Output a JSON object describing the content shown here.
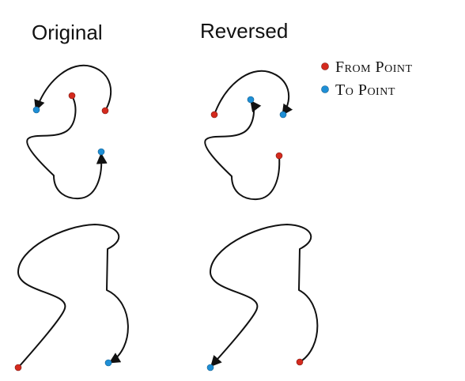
{
  "titles": {
    "original": "Original",
    "reversed": "Reversed"
  },
  "legend": {
    "from_point": "From Point",
    "to_point": "To Point"
  },
  "colors": {
    "from_point": "#d42a1e",
    "to_point": "#1e8fd6",
    "stroke": "#111111"
  }
}
